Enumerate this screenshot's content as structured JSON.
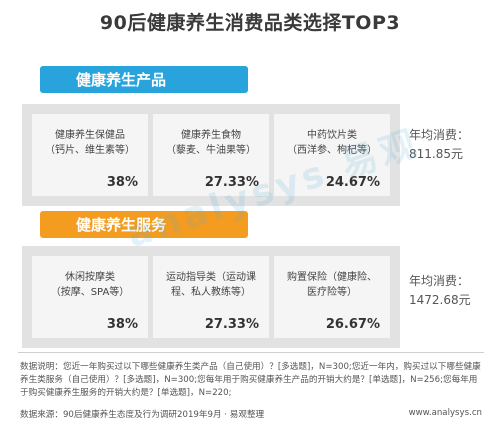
{
  "title": "90后健康养生消费品类选择TOP3",
  "colors": {
    "blue": "#29a3dc",
    "orange": "#f39c1f",
    "panel": "#e2e2e2",
    "card": "#f5f5f5"
  },
  "sections": [
    {
      "header": "健康养生产品",
      "cards": [
        {
          "name": "健康养生保健品\n（钙片、维生素等）",
          "percent": "38%"
        },
        {
          "name": "健康养生食物\n（藜麦、牛油果等）",
          "percent": "27.33%"
        },
        {
          "name": "中药饮片类\n（西洋参、枸杞等）",
          "percent": "24.67%"
        }
      ],
      "stat_label": "年均消费：",
      "stat_value": "811.85元"
    },
    {
      "header": "健康养生服务",
      "cards": [
        {
          "name": "休闲按摩类\n（按摩、SPA等）",
          "percent": "38%"
        },
        {
          "name": "运动指导类（运动课\n程、私人教练等）",
          "percent": "27.33%"
        },
        {
          "name": "购置保险（健康险、\n医疗险等）",
          "percent": "26.67%"
        }
      ],
      "stat_label": "年均消费：",
      "stat_value": "1472.68元"
    }
  ],
  "notes": "数据说明：您近一年购买过以下哪些健康养生类产品（自己使用）？[多选题]，N=300;您近一年内，购买过以下哪些健康养生类服务（自己使用）？[多选题]，N=300;您每年用于购买健康养生产品的开销大约是？[单选题]，N=256;您每年用于购买健康养生服务的开销大约是？[单选题]，N=220;",
  "source": "数据来源：90后健康养生态度及行为调研2019年9月 · 易观整理",
  "url": "www.analysys.cn"
}
